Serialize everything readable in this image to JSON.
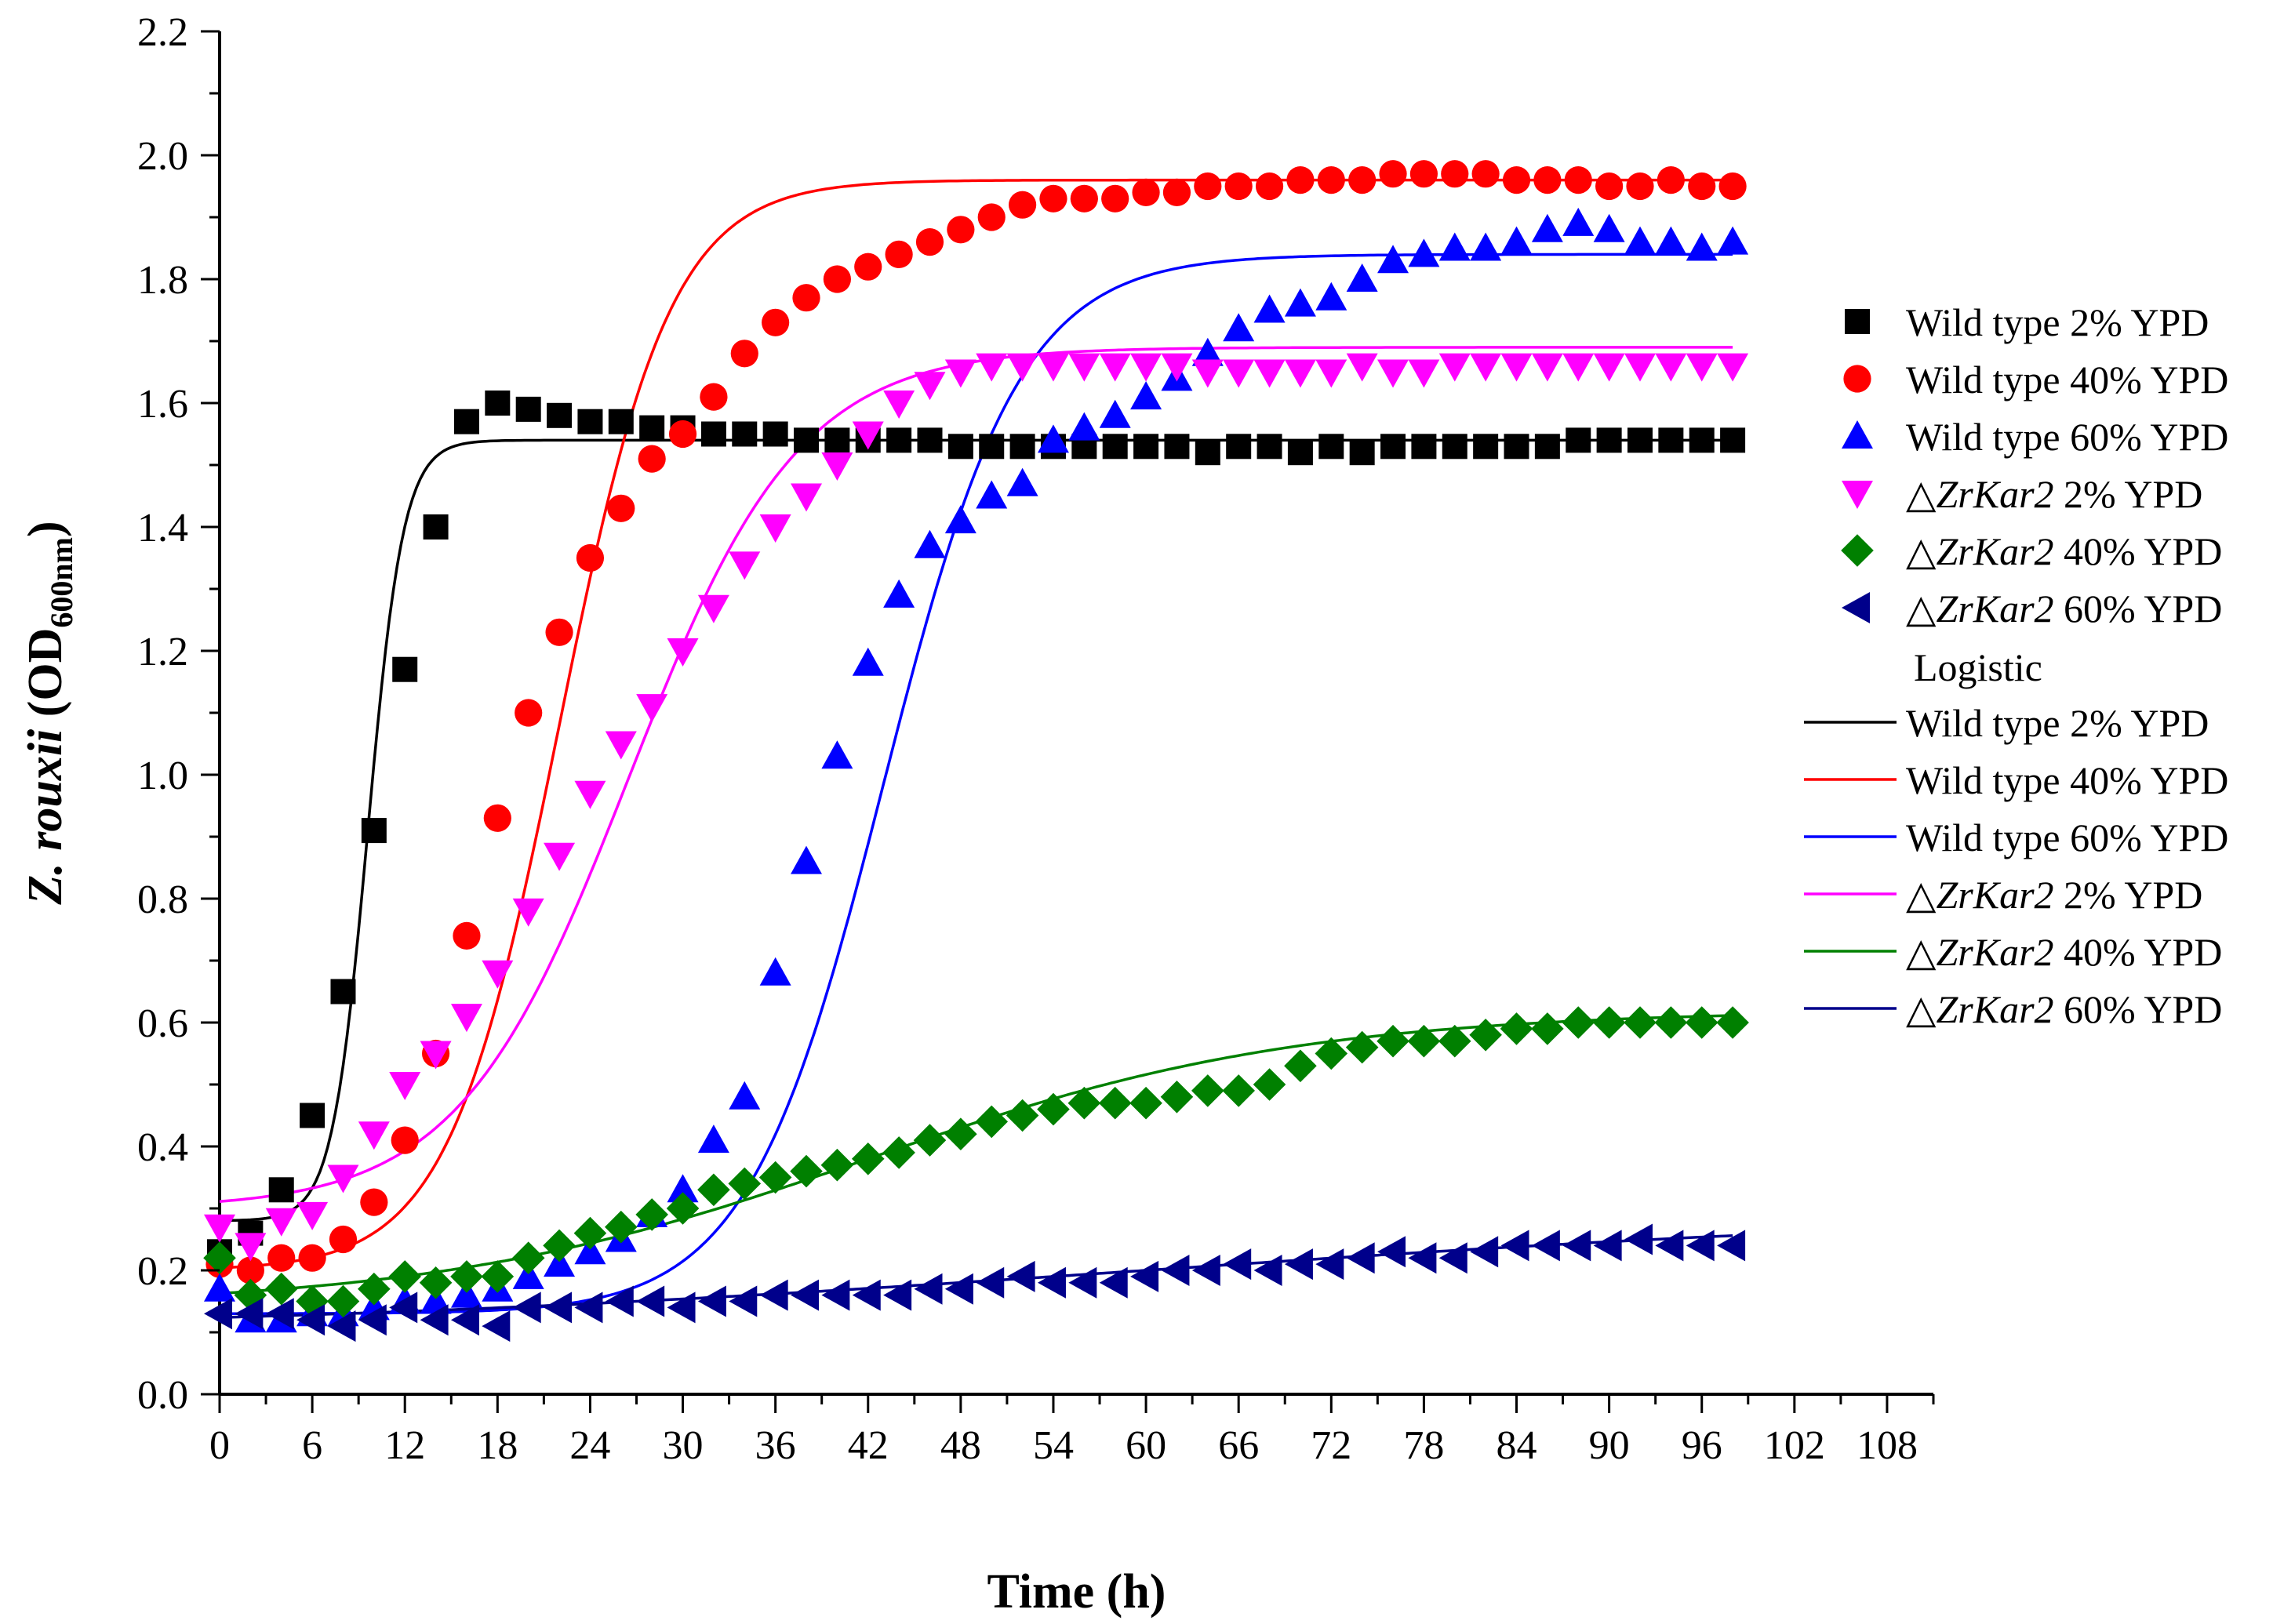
{
  "chart_data": {
    "type": "scatter",
    "xlabel": "Time (h)",
    "ylabel": {
      "italic": "Z. rouxii",
      "main": " (OD",
      "sub": "600nm",
      "close": ")"
    },
    "xlim": [
      0,
      111
    ],
    "ylim": [
      0,
      2.2
    ],
    "xticks": [
      "0",
      "6",
      "12",
      "18",
      "24",
      "30",
      "36",
      "42",
      "48",
      "54",
      "60",
      "66",
      "72",
      "78",
      "84",
      "90",
      "96",
      "102",
      "108"
    ],
    "yticks": [
      "0.0",
      "0.2",
      "0.4",
      "0.6",
      "0.8",
      "1.0",
      "1.2",
      "1.4",
      "1.6",
      "1.8",
      "2.0",
      "2.2"
    ],
    "series": [
      {
        "name": "Wild type 2% YPD",
        "marker": "square",
        "color": "#000000",
        "x": [
          0,
          2,
          4,
          6,
          8,
          10,
          12,
          14,
          16,
          18,
          20,
          22,
          24,
          26,
          28,
          30,
          32,
          34,
          36,
          38,
          40,
          42,
          44,
          46,
          48,
          50,
          52,
          54,
          56,
          58,
          60,
          62,
          64,
          66,
          68,
          70,
          72,
          74,
          76,
          78,
          80,
          82,
          84,
          86,
          88,
          90,
          92,
          94,
          96,
          98
        ],
        "y": [
          0.23,
          0.26,
          0.33,
          0.45,
          0.65,
          0.91,
          1.17,
          1.4,
          1.57,
          1.6,
          1.59,
          1.58,
          1.57,
          1.57,
          1.56,
          1.56,
          1.55,
          1.55,
          1.55,
          1.54,
          1.54,
          1.54,
          1.54,
          1.54,
          1.53,
          1.53,
          1.53,
          1.53,
          1.53,
          1.53,
          1.53,
          1.53,
          1.52,
          1.53,
          1.53,
          1.52,
          1.53,
          1.52,
          1.53,
          1.53,
          1.53,
          1.53,
          1.53,
          1.53,
          1.54,
          1.54,
          1.54,
          1.54,
          1.54,
          1.54
        ]
      },
      {
        "name": "Wild type 40% YPD",
        "marker": "circle",
        "color": "#ff0000",
        "x": [
          0,
          2,
          4,
          6,
          8,
          10,
          12,
          14,
          16,
          18,
          20,
          22,
          24,
          26,
          28,
          30,
          32,
          34,
          36,
          38,
          40,
          42,
          44,
          46,
          48,
          50,
          52,
          54,
          56,
          58,
          60,
          62,
          64,
          66,
          68,
          70,
          72,
          74,
          76,
          78,
          80,
          82,
          84,
          86,
          88,
          90,
          92,
          94,
          96,
          98
        ],
        "y": [
          0.21,
          0.2,
          0.22,
          0.22,
          0.25,
          0.31,
          0.41,
          0.55,
          0.74,
          0.93,
          1.1,
          1.23,
          1.35,
          1.43,
          1.51,
          1.55,
          1.61,
          1.68,
          1.73,
          1.77,
          1.8,
          1.82,
          1.84,
          1.86,
          1.88,
          1.9,
          1.92,
          1.93,
          1.93,
          1.93,
          1.94,
          1.94,
          1.95,
          1.95,
          1.95,
          1.96,
          1.96,
          1.96,
          1.97,
          1.97,
          1.97,
          1.97,
          1.96,
          1.96,
          1.96,
          1.95,
          1.95,
          1.96,
          1.95,
          1.95
        ]
      },
      {
        "name": "Wild type 60% YPD",
        "marker": "triangle-up",
        "color": "#0000ff",
        "x": [
          0,
          2,
          4,
          6,
          8,
          10,
          12,
          14,
          16,
          18,
          20,
          22,
          24,
          26,
          28,
          30,
          32,
          34,
          36,
          38,
          40,
          42,
          44,
          46,
          48,
          50,
          52,
          54,
          56,
          58,
          60,
          62,
          64,
          66,
          68,
          70,
          72,
          74,
          76,
          78,
          80,
          82,
          84,
          86,
          88,
          90,
          92,
          94,
          96,
          98
        ],
        "y": [
          0.17,
          0.12,
          0.12,
          0.13,
          0.13,
          0.14,
          0.15,
          0.15,
          0.16,
          0.17,
          0.19,
          0.21,
          0.23,
          0.25,
          0.29,
          0.33,
          0.41,
          0.48,
          0.68,
          0.86,
          1.03,
          1.18,
          1.29,
          1.37,
          1.41,
          1.45,
          1.47,
          1.54,
          1.56,
          1.58,
          1.61,
          1.64,
          1.68,
          1.72,
          1.75,
          1.76,
          1.77,
          1.8,
          1.83,
          1.84,
          1.85,
          1.85,
          1.86,
          1.88,
          1.89,
          1.88,
          1.86,
          1.86,
          1.85,
          1.86
        ]
      },
      {
        "name": "△ZrKar2 2% YPD",
        "marker": "triangle-down",
        "color": "#ff00ff",
        "x": [
          0,
          2,
          4,
          6,
          8,
          10,
          12,
          14,
          16,
          18,
          20,
          22,
          24,
          26,
          28,
          30,
          32,
          34,
          36,
          38,
          40,
          42,
          44,
          46,
          48,
          50,
          52,
          54,
          56,
          58,
          60,
          62,
          64,
          66,
          68,
          70,
          72,
          74,
          76,
          78,
          80,
          82,
          84,
          86,
          88,
          90,
          92,
          94,
          96,
          98
        ],
        "y": [
          0.27,
          0.24,
          0.28,
          0.29,
          0.35,
          0.42,
          0.5,
          0.55,
          0.61,
          0.68,
          0.78,
          0.87,
          0.97,
          1.05,
          1.11,
          1.2,
          1.27,
          1.34,
          1.4,
          1.45,
          1.5,
          1.55,
          1.6,
          1.63,
          1.65,
          1.66,
          1.66,
          1.66,
          1.66,
          1.66,
          1.66,
          1.66,
          1.65,
          1.65,
          1.65,
          1.65,
          1.65,
          1.66,
          1.65,
          1.65,
          1.66,
          1.66,
          1.66,
          1.66,
          1.66,
          1.66,
          1.66,
          1.66,
          1.66,
          1.66
        ]
      },
      {
        "name": "△ZrKar2 40% YPD",
        "marker": "diamond",
        "color": "#008000",
        "x": [
          0,
          2,
          4,
          6,
          8,
          10,
          12,
          14,
          16,
          18,
          20,
          22,
          24,
          26,
          28,
          30,
          32,
          34,
          36,
          38,
          40,
          42,
          44,
          46,
          48,
          50,
          52,
          54,
          56,
          58,
          60,
          62,
          64,
          66,
          68,
          70,
          72,
          74,
          76,
          78,
          80,
          82,
          84,
          86,
          88,
          90,
          92,
          94,
          96,
          98
        ],
        "y": [
          0.22,
          0.16,
          0.17,
          0.15,
          0.15,
          0.17,
          0.19,
          0.18,
          0.19,
          0.19,
          0.22,
          0.24,
          0.26,
          0.27,
          0.29,
          0.3,
          0.33,
          0.34,
          0.35,
          0.36,
          0.37,
          0.38,
          0.39,
          0.41,
          0.42,
          0.44,
          0.45,
          0.46,
          0.47,
          0.47,
          0.47,
          0.48,
          0.49,
          0.49,
          0.5,
          0.53,
          0.55,
          0.56,
          0.57,
          0.57,
          0.57,
          0.58,
          0.59,
          0.59,
          0.6,
          0.6,
          0.6,
          0.6,
          0.6,
          0.6
        ]
      },
      {
        "name": "△ZrKar2 60% YPD",
        "marker": "triangle-left",
        "color": "#00008b",
        "x": [
          0,
          2,
          4,
          6,
          8,
          10,
          12,
          14,
          16,
          18,
          20,
          22,
          24,
          26,
          28,
          30,
          32,
          34,
          36,
          38,
          40,
          42,
          44,
          46,
          48,
          50,
          52,
          54,
          56,
          58,
          60,
          62,
          64,
          66,
          68,
          70,
          72,
          74,
          76,
          78,
          80,
          82,
          84,
          86,
          88,
          90,
          92,
          94,
          96,
          98
        ],
        "y": [
          0.13,
          0.13,
          0.13,
          0.12,
          0.11,
          0.12,
          0.14,
          0.12,
          0.12,
          0.11,
          0.14,
          0.14,
          0.14,
          0.15,
          0.15,
          0.14,
          0.15,
          0.15,
          0.16,
          0.16,
          0.16,
          0.16,
          0.16,
          0.17,
          0.17,
          0.18,
          0.19,
          0.18,
          0.18,
          0.18,
          0.19,
          0.2,
          0.2,
          0.21,
          0.2,
          0.21,
          0.21,
          0.22,
          0.23,
          0.22,
          0.22,
          0.23,
          0.24,
          0.24,
          0.24,
          0.24,
          0.25,
          0.24,
          0.24,
          0.24
        ]
      }
    ],
    "fits": [
      {
        "name": "Wild type 2% YPD",
        "color": "#000000",
        "A1": 0.28,
        "A2": 1.54,
        "x0": 9.6,
        "dx": 1.15
      },
      {
        "name": "Wild type 40% YPD",
        "color": "#ff0000",
        "A1": 0.2,
        "A2": 1.96,
        "x0": 22.0,
        "dx": 3.6
      },
      {
        "name": "Wild type 60% YPD",
        "color": "#0000ff",
        "A1": 0.13,
        "A2": 1.84,
        "x0": 43.0,
        "dx": 4.4
      },
      {
        "name": "△ZrKar2 2% YPD",
        "color": "#ff00ff",
        "A1": 0.3,
        "A2": 1.69,
        "x0": 26.5,
        "dx": 5.5
      },
      {
        "name": "△ZrKar2 40% YPD",
        "color": "#008000",
        "A1": 0.14,
        "A2": 0.62,
        "x0": 42.0,
        "dx": 14.0
      },
      {
        "name": "△ZrKar2 60% YPD",
        "color": "#00008b",
        "A1": 0.1,
        "A2": 0.3,
        "x0": 60.0,
        "dx": 30.0
      }
    ],
    "legend": {
      "position": "right",
      "symbols": [
        {
          "marker": "square",
          "color": "#000000",
          "pre": "Wild type",
          "italic": "",
          "post": " 2% YPD"
        },
        {
          "marker": "circle",
          "color": "#ff0000",
          "pre": "Wild type",
          "italic": "",
          "post": " 40% YPD"
        },
        {
          "marker": "triangle-up",
          "color": "#0000ff",
          "pre": "Wild type",
          "italic": "",
          "post": " 60% YPD"
        },
        {
          "marker": "triangle-down",
          "color": "#ff00ff",
          "pre": "",
          "italic": "△ZrKar2",
          "post": " 2% YPD"
        },
        {
          "marker": "diamond",
          "color": "#008000",
          "pre": "",
          "italic": "△ZrKar2",
          "post": " 40% YPD"
        },
        {
          "marker": "triangle-left",
          "color": "#00008b",
          "pre": "",
          "italic": "△ZrKar2",
          "post": " 60% YPD"
        }
      ],
      "fit_header": "Logistic",
      "lines": [
        {
          "color": "#000000",
          "pre": "Wild type",
          "italic": "",
          "post": " 2% YPD"
        },
        {
          "color": "#ff0000",
          "pre": "Wild type",
          "italic": "",
          "post": " 40% YPD"
        },
        {
          "color": "#0000ff",
          "pre": "Wild type",
          "italic": "",
          "post": " 60% YPD"
        },
        {
          "color": "#ff00ff",
          "pre": "",
          "italic": "△ZrKar2",
          "post": " 2% YPD"
        },
        {
          "color": "#008000",
          "pre": "",
          "italic": "△ZrKar2",
          "post": " 40% YPD"
        },
        {
          "color": "#00008b",
          "pre": "",
          "italic": "△ZrKar2",
          "post": " 60% YPD"
        }
      ]
    }
  }
}
